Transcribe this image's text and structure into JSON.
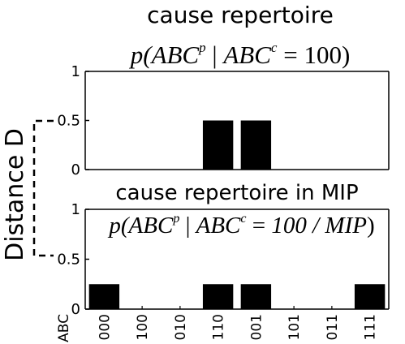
{
  "chart_data": [
    {
      "type": "bar",
      "title": "cause repertoire",
      "subtitle": {
        "p_open": "p(",
        "lhs": "ABC",
        "lhs_sup": "p",
        "bar": " | ",
        "rhs": "ABC",
        "rhs_sup": "c",
        "eq": " = ",
        "value": "100",
        "close": ")"
      },
      "ylim": [
        0,
        1
      ],
      "yticks": [
        "0",
        "0.5",
        "1"
      ],
      "categories": [
        "000",
        "100",
        "010",
        "110",
        "001",
        "101",
        "011",
        "111"
      ],
      "values": [
        0,
        0,
        0,
        0.5,
        0.5,
        0,
        0,
        0
      ]
    },
    {
      "type": "bar",
      "title": "cause repertoire in MIP",
      "subtitle": {
        "p_open": "p(",
        "lhs": "ABC",
        "lhs_sup": "p",
        "bar": " | ",
        "rhs": "ABC",
        "rhs_sup": "c",
        "eq": " = ",
        "value": "100 / MIP",
        "close": ")"
      },
      "ylim": [
        0,
        1
      ],
      "yticks": [
        "0",
        "0.5",
        "1"
      ],
      "categories": [
        "000",
        "100",
        "010",
        "110",
        "001",
        "101",
        "011",
        "111"
      ],
      "values": [
        0.25,
        0,
        0,
        0.25,
        0.25,
        0,
        0,
        0.25
      ],
      "x_axis_label": "ABC"
    }
  ],
  "distance_label": "Distance D",
  "colors": {
    "bar": "#000000",
    "axis": "#000000",
    "background": "#ffffff"
  }
}
